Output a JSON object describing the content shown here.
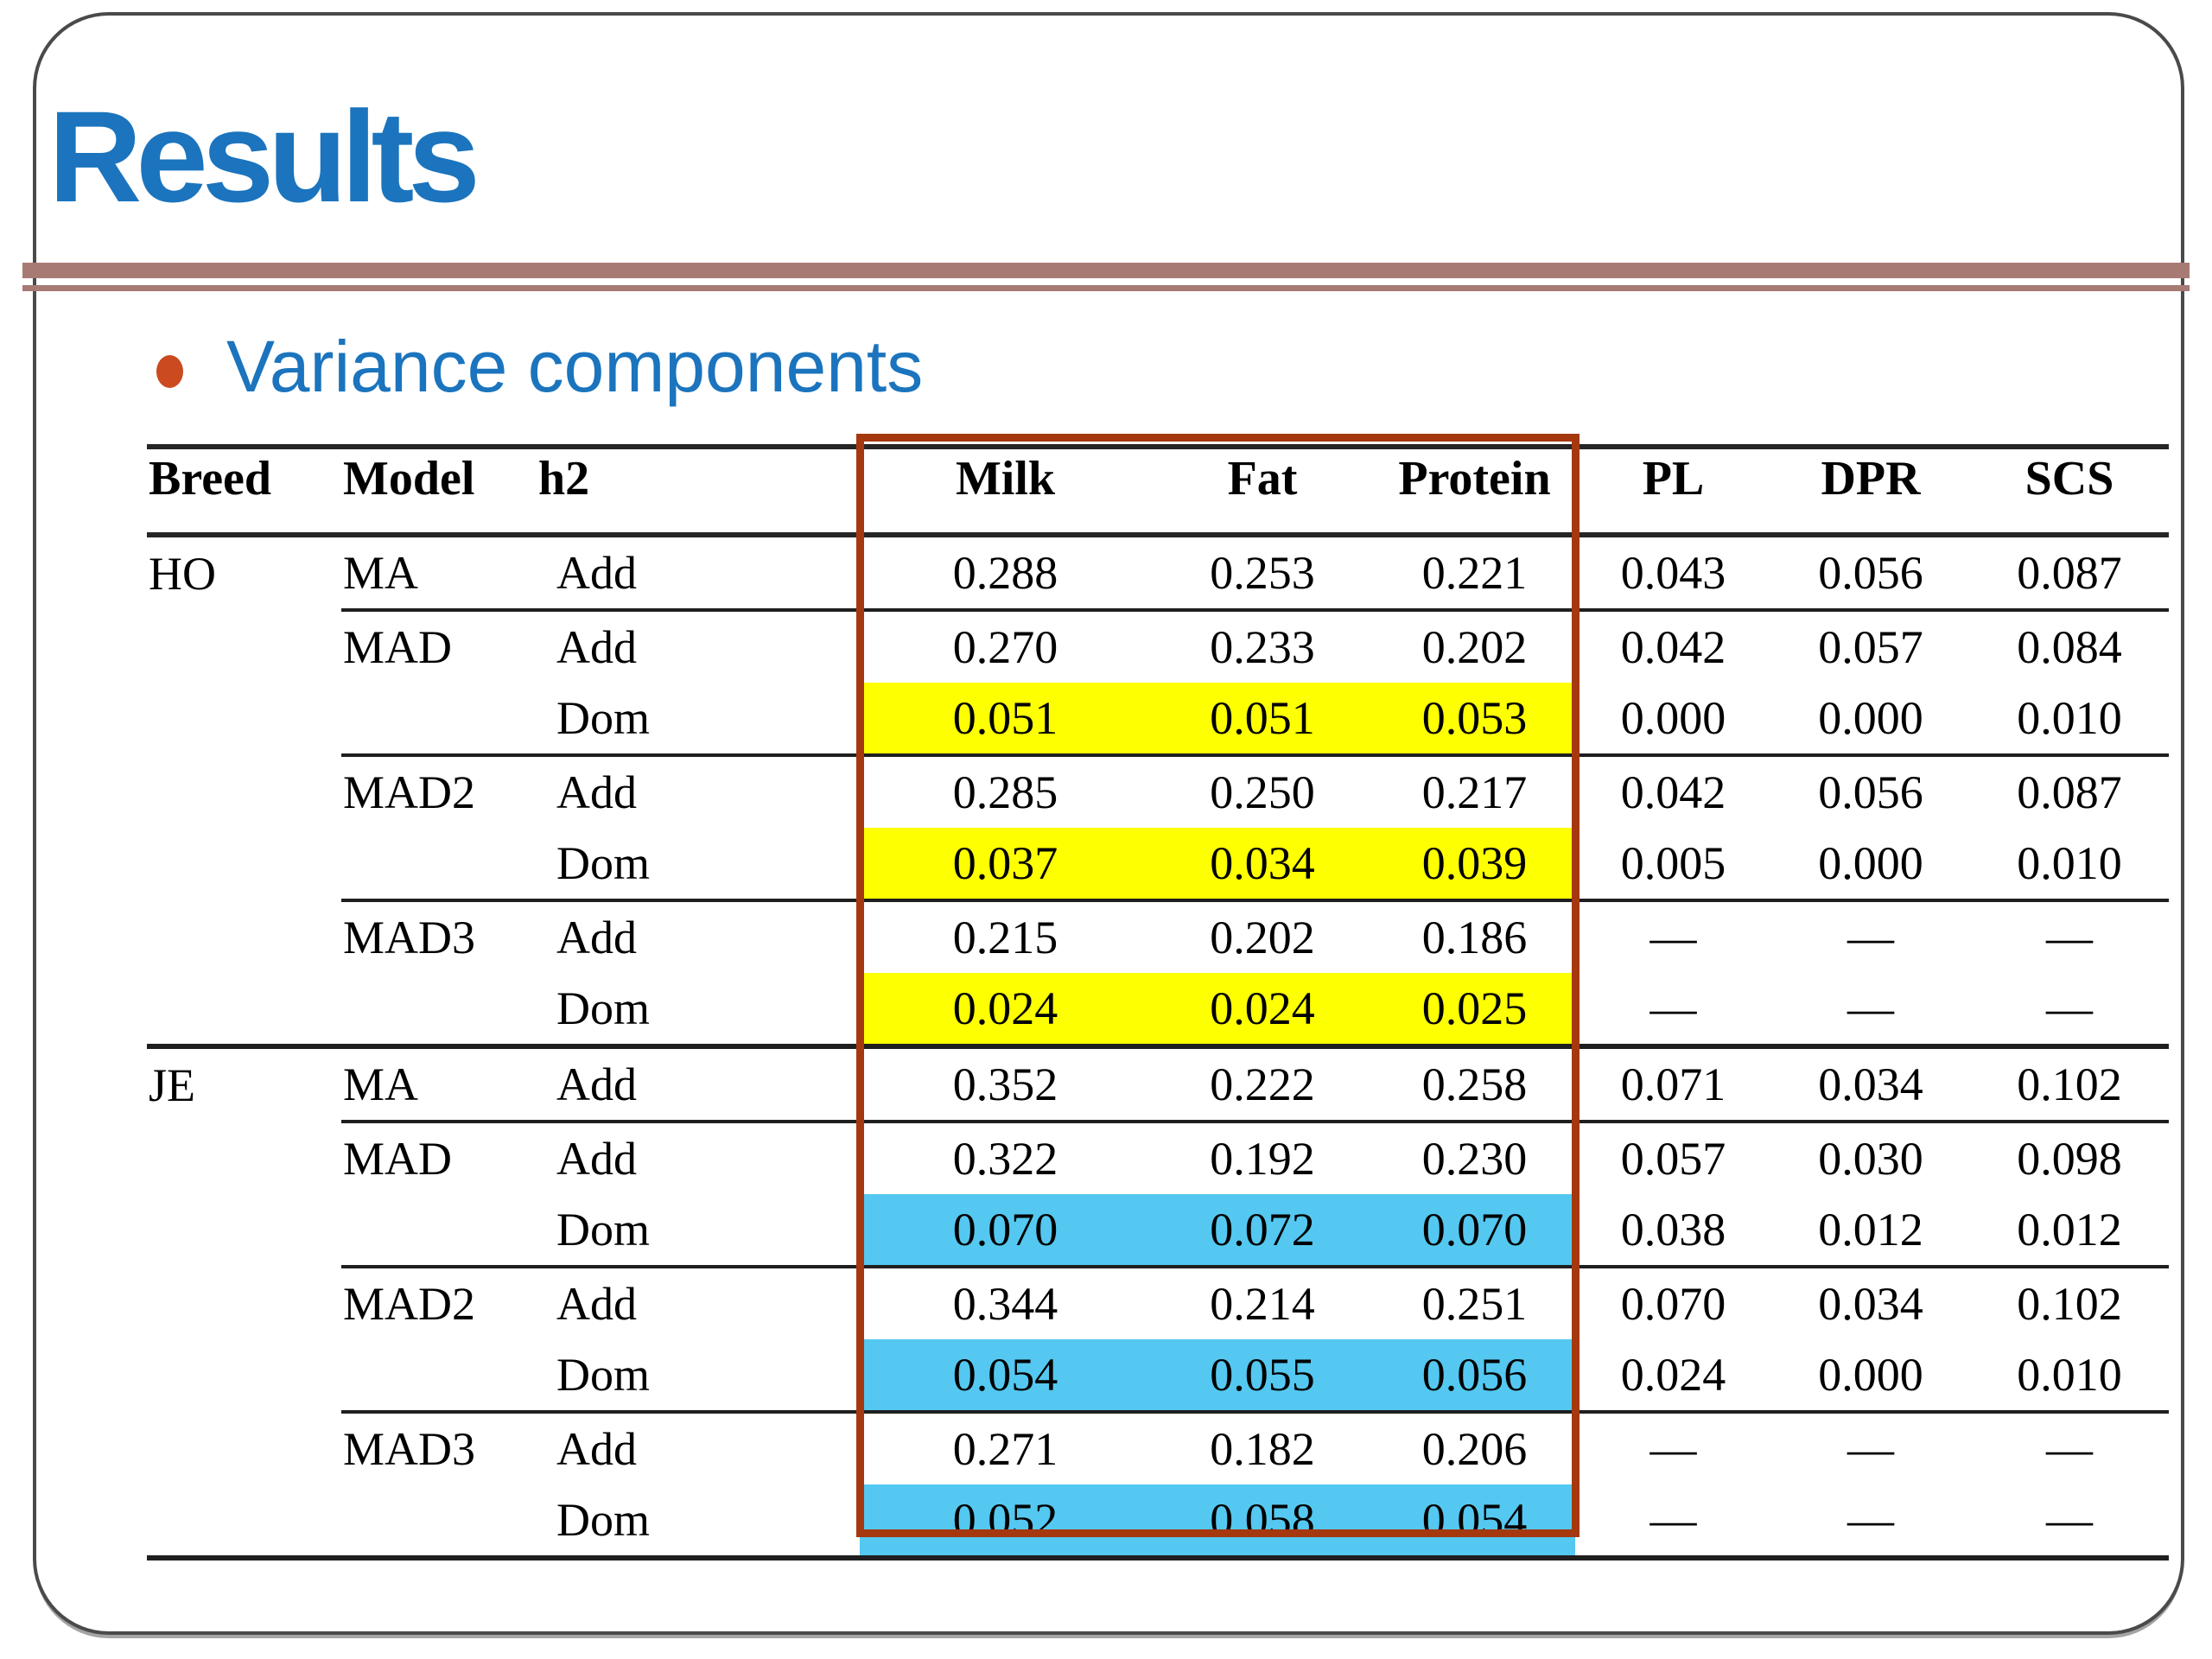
{
  "slide": {
    "title": "Results",
    "bullet_label": "Variance components"
  },
  "colors": {
    "title-blue": "#1b74bd",
    "accent-rose": "#a87a74",
    "bullet-orange": "#cb4a20",
    "hl-yellow": "#feff00",
    "hl-cyan": "#54c8f0",
    "focus-red": "#a5380f"
  },
  "table": {
    "headers": [
      "Breed",
      "Model",
      "h2",
      "Milk",
      "Fat",
      "Protein",
      "PL",
      "DPR",
      "SCS"
    ],
    "rows": [
      {
        "breed": "HO",
        "model": "MA",
        "h2": "Add",
        "values": [
          "0.288",
          "0.253",
          "0.221",
          "0.043",
          "0.056",
          "0.087"
        ],
        "highlight": null,
        "sep_after": "model"
      },
      {
        "breed": "",
        "model": "MAD",
        "h2": "Add",
        "values": [
          "0.270",
          "0.233",
          "0.202",
          "0.042",
          "0.057",
          "0.084"
        ],
        "highlight": null,
        "sep_after": null
      },
      {
        "breed": "",
        "model": "",
        "h2": "Dom",
        "values": [
          "0.051",
          "0.051",
          "0.053",
          "0.000",
          "0.000",
          "0.010"
        ],
        "highlight": "yellow",
        "sep_after": "model"
      },
      {
        "breed": "",
        "model": "MAD2",
        "h2": "Add",
        "values": [
          "0.285",
          "0.250",
          "0.217",
          "0.042",
          "0.056",
          "0.087"
        ],
        "highlight": null,
        "sep_after": null
      },
      {
        "breed": "",
        "model": "",
        "h2": "Dom",
        "values": [
          "0.037",
          "0.034",
          "0.039",
          "0.005",
          "0.000",
          "0.010"
        ],
        "highlight": "yellow",
        "sep_after": "model"
      },
      {
        "breed": "",
        "model": "MAD3",
        "h2": "Add",
        "values": [
          "0.215",
          "0.202",
          "0.186",
          "—",
          "—",
          "—"
        ],
        "highlight": null,
        "sep_after": null
      },
      {
        "breed": "",
        "model": "",
        "h2": "Dom",
        "values": [
          "0.024",
          "0.024",
          "0.025",
          "—",
          "—",
          "—"
        ],
        "highlight": "yellow",
        "sep_after": "section"
      },
      {
        "breed": "JE",
        "model": "MA",
        "h2": "Add",
        "values": [
          "0.352",
          "0.222",
          "0.258",
          "0.071",
          "0.034",
          "0.102"
        ],
        "highlight": null,
        "sep_after": "model"
      },
      {
        "breed": "",
        "model": "MAD",
        "h2": "Add",
        "values": [
          "0.322",
          "0.192",
          "0.230",
          "0.057",
          "0.030",
          "0.098"
        ],
        "highlight": null,
        "sep_after": null
      },
      {
        "breed": "",
        "model": "",
        "h2": "Dom",
        "values": [
          "0.070",
          "0.072",
          "0.070",
          "0.038",
          "0.012",
          "0.012"
        ],
        "highlight": "cyan",
        "sep_after": "model"
      },
      {
        "breed": "",
        "model": "MAD2",
        "h2": "Add",
        "values": [
          "0.344",
          "0.214",
          "0.251",
          "0.070",
          "0.034",
          "0.102"
        ],
        "highlight": null,
        "sep_after": null
      },
      {
        "breed": "",
        "model": "",
        "h2": "Dom",
        "values": [
          "0.054",
          "0.055",
          "0.056",
          "0.024",
          "0.000",
          "0.010"
        ],
        "highlight": "cyan",
        "sep_after": "model"
      },
      {
        "breed": "",
        "model": "MAD3",
        "h2": "Add",
        "values": [
          "0.271",
          "0.182",
          "0.206",
          "—",
          "—",
          "—"
        ],
        "highlight": null,
        "sep_after": null
      },
      {
        "breed": "",
        "model": "",
        "h2": "Dom",
        "values": [
          "0.052",
          "0.058",
          "0.054",
          "—",
          "—",
          "—"
        ],
        "highlight": "cyan",
        "sep_after": "bottom"
      }
    ],
    "focus_columns": [
      "Milk",
      "Fat",
      "Protein"
    ]
  }
}
